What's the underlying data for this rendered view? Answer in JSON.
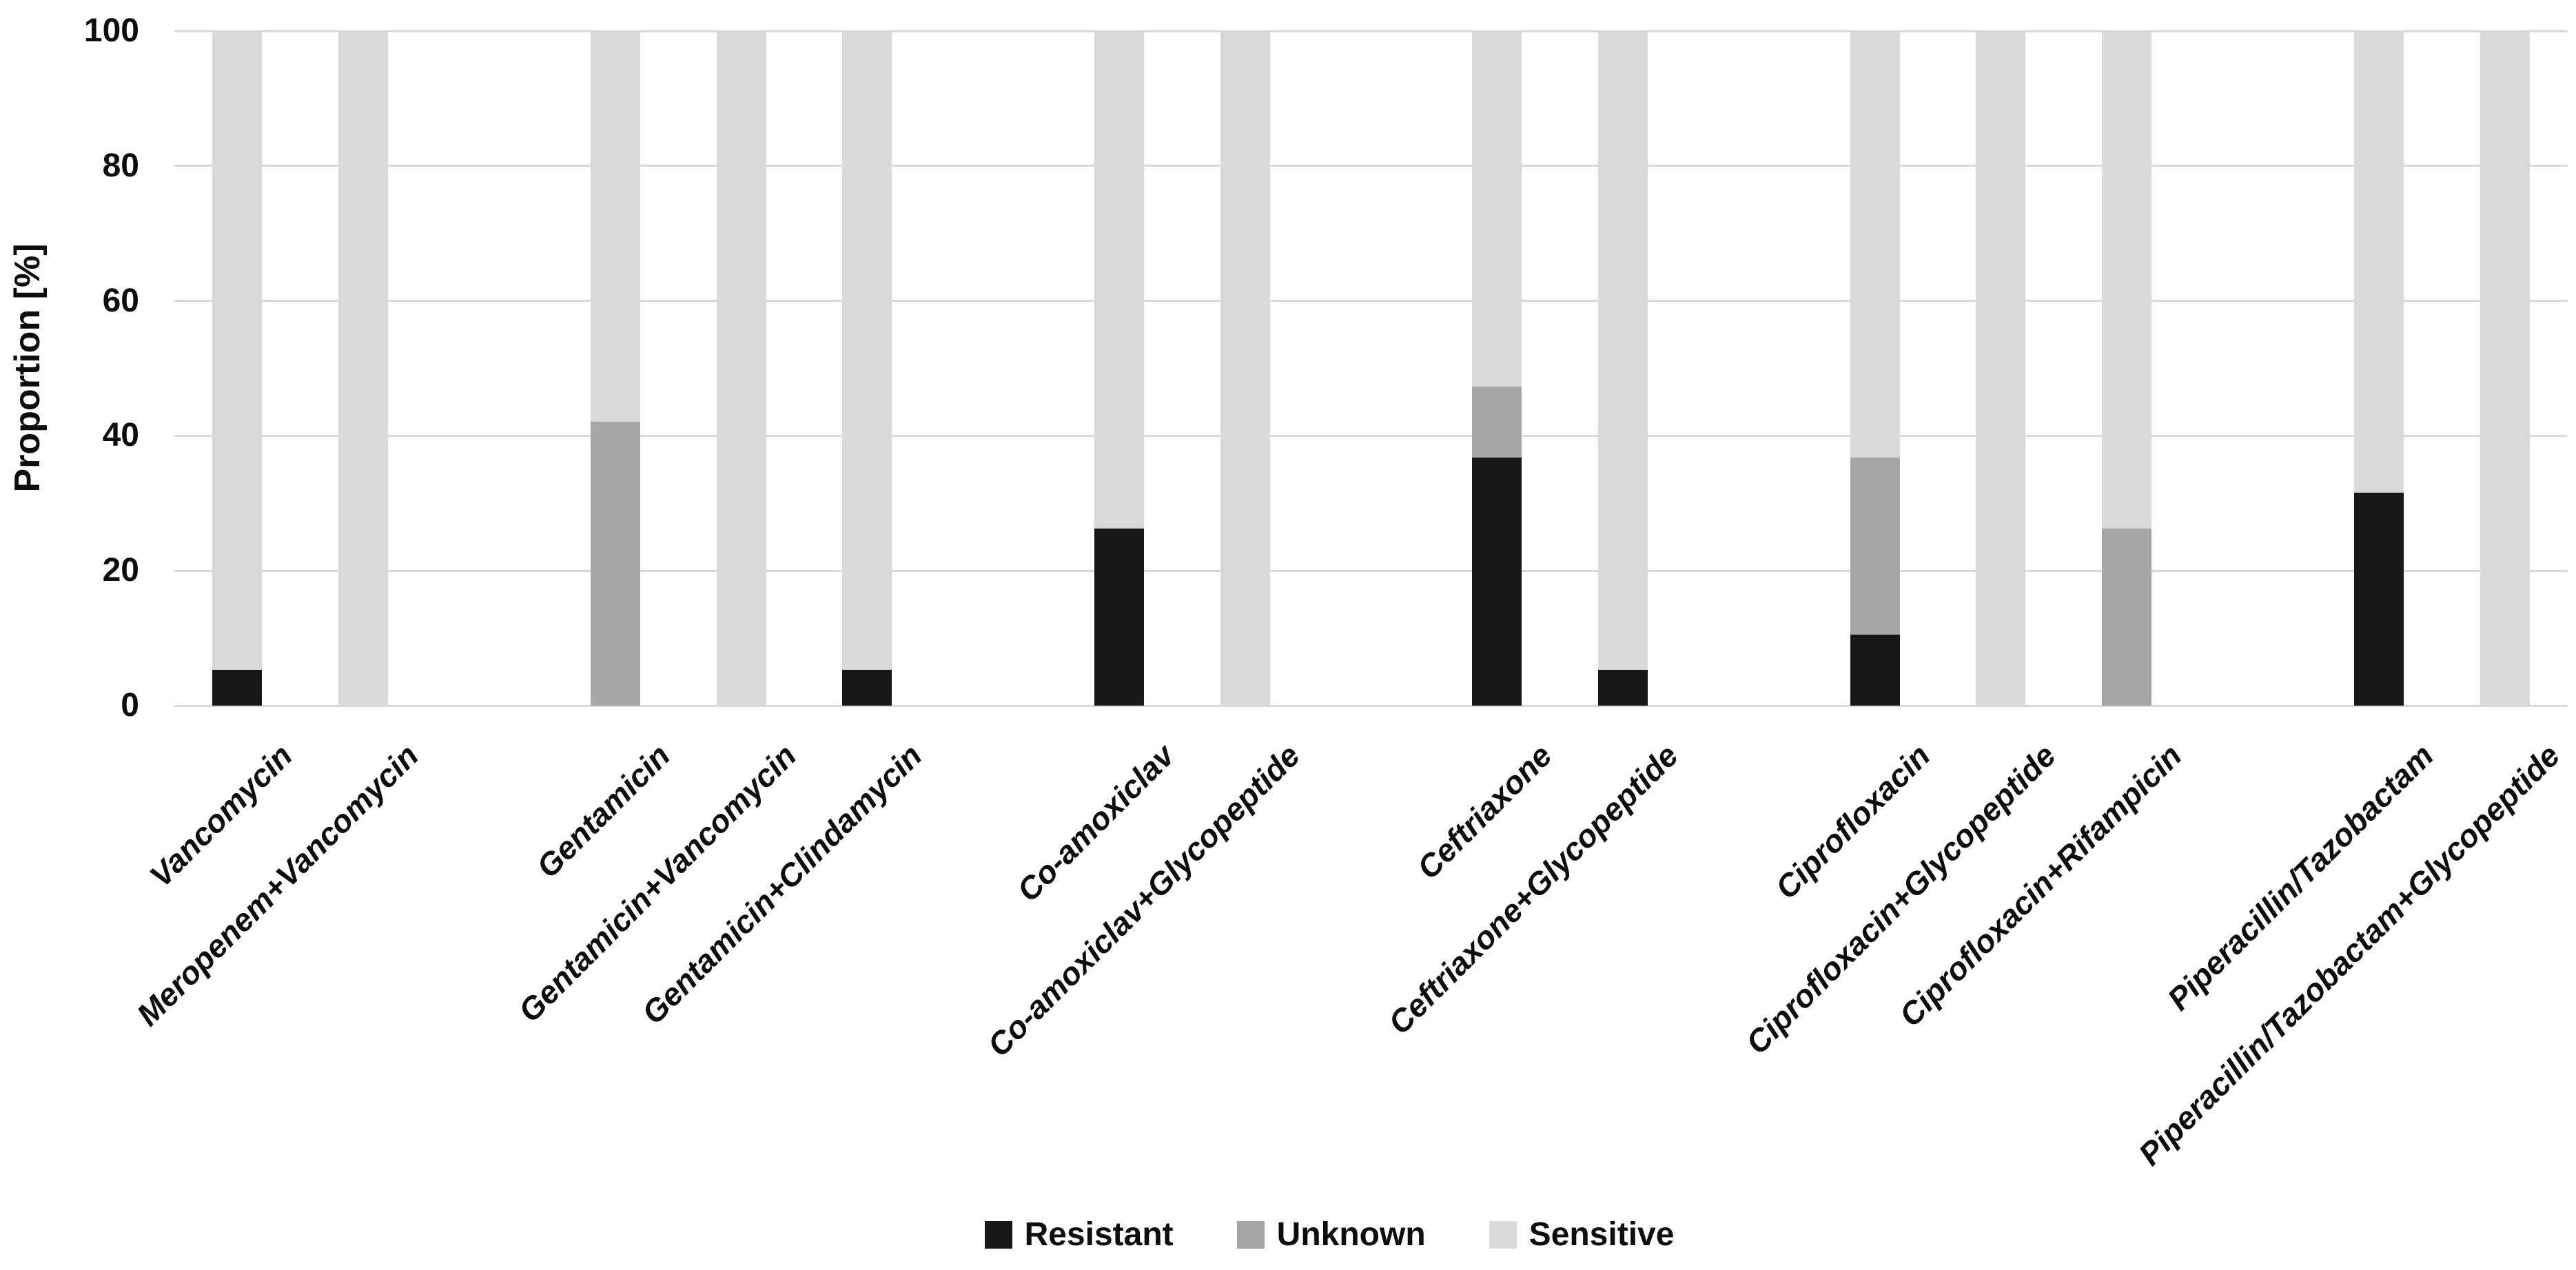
{
  "colors": {
    "background": "#ffffff",
    "gridline": "#d9d9d9",
    "text": "#0d0d0d",
    "resistant": "#171717",
    "unknown": "#a6a6a6",
    "sensitive": "#d9d9d9"
  },
  "chart_data": {
    "type": "bar",
    "stacked": true,
    "title": "",
    "xlabel": "",
    "ylabel": "Proportion [%]",
    "ylim": [
      0,
      100
    ],
    "yticks": [
      0,
      20,
      40,
      60,
      80,
      100
    ],
    "grid": true,
    "legend_position": "bottom-center",
    "categories": [
      "Vancomycin",
      "Meropenem+Vancomycin",
      "Gentamicin",
      "Gentamicin+Vancomycin",
      "Gentamicin+Clindamycin",
      "Co-amoxiclav",
      "Co-amoxiclav+Glycopeptide",
      "Ceftriaxone",
      "Ceftriaxone+Glycopeptide",
      "Ciprofloxacin",
      "Ciprofloxacin+Glycopeptide",
      "Ciprofloxacin+Rifampicin",
      "Piperacillin/Tazobactam",
      "Piperacillin/Tazobactam+Glycopeptide"
    ],
    "group_slots": [
      1,
      2,
      4,
      5,
      6,
      8,
      9,
      11,
      12,
      14,
      15,
      16,
      18,
      19
    ],
    "total_slots": 19,
    "series": [
      {
        "name": "Resistant",
        "color": "#171717",
        "values": [
          5.3,
          0,
          0,
          0,
          5.3,
          26.3,
          0,
          36.8,
          5.3,
          10.5,
          0,
          0,
          31.6,
          0
        ]
      },
      {
        "name": "Unknown",
        "color": "#a6a6a6",
        "values": [
          0,
          0,
          42.1,
          0,
          0,
          0,
          0,
          10.5,
          0,
          26.3,
          0,
          26.3,
          0,
          0
        ]
      },
      {
        "name": "Sensitive",
        "color": "#d9d9d9",
        "values": [
          94.7,
          100,
          57.9,
          100,
          94.7,
          73.7,
          100,
          52.7,
          94.7,
          63.2,
          100,
          73.7,
          68.4,
          100
        ]
      }
    ]
  }
}
